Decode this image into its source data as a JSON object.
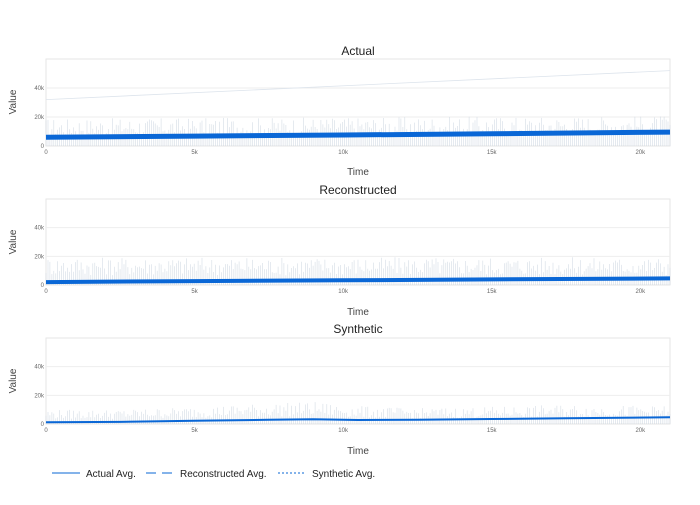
{
  "colors": {
    "avg_line": "#0a67d6",
    "band": "#c9d3de",
    "grid": "#eeeeee",
    "frame": "#e6e6e6"
  },
  "chart_data": [
    {
      "type": "line",
      "title": "Actual",
      "xlabel": "Time",
      "ylabel": "Value",
      "xlim": [
        0,
        21000
      ],
      "ylim": [
        0,
        60000
      ],
      "x_ticks": [
        0,
        5000,
        10000,
        15000,
        20000
      ],
      "x_tick_labels": [
        "0",
        "5k",
        "10k",
        "15k",
        "20k"
      ],
      "y_ticks": [
        0,
        20000,
        40000
      ],
      "y_tick_labels": [
        "0",
        "20k",
        "40k"
      ],
      "grid": true,
      "series": [
        {
          "style": "solid",
          "role": "average",
          "x": [
            0,
            5000,
            10000,
            15000,
            21000
          ],
          "y": [
            6000,
            6800,
            7600,
            8400,
            9600
          ]
        },
        {
          "style": "band",
          "role": "range",
          "x": [
            0,
            21000
          ],
          "low": [
            0,
            0
          ],
          "high": [
            19000,
            21000
          ]
        },
        {
          "style": "faint",
          "role": "upper",
          "x": [
            0,
            21000
          ],
          "y": [
            32000,
            52000
          ]
        }
      ]
    },
    {
      "type": "line",
      "title": "Reconstructed",
      "xlabel": "Time",
      "ylabel": "Value",
      "xlim": [
        0,
        21000
      ],
      "ylim": [
        0,
        60000
      ],
      "x_ticks": [
        0,
        5000,
        10000,
        15000,
        20000
      ],
      "x_tick_labels": [
        "0",
        "5k",
        "10k",
        "15k",
        "20k"
      ],
      "y_ticks": [
        0,
        20000,
        40000
      ],
      "y_tick_labels": [
        "0",
        "20k",
        "40k"
      ],
      "grid": true,
      "series": [
        {
          "style": "dashed",
          "role": "average",
          "x": [
            0,
            5000,
            10000,
            15000,
            21000
          ],
          "y": [
            2000,
            2700,
            3300,
            3900,
            4600
          ]
        },
        {
          "style": "band",
          "role": "range",
          "x": [
            0,
            21000
          ],
          "low": [
            0,
            0
          ],
          "high": [
            19500,
            19500
          ]
        }
      ]
    },
    {
      "type": "line",
      "title": "Synthetic",
      "xlabel": "Time",
      "ylabel": "Value",
      "xlim": [
        0,
        21000
      ],
      "ylim": [
        0,
        60000
      ],
      "x_ticks": [
        0,
        5000,
        10000,
        15000,
        20000
      ],
      "x_tick_labels": [
        "0",
        "5k",
        "10k",
        "15k",
        "20k"
      ],
      "y_ticks": [
        0,
        20000,
        40000
      ],
      "y_tick_labels": [
        "0",
        "20k",
        "40k"
      ],
      "grid": true,
      "series": [
        {
          "style": "dotted",
          "role": "average",
          "x": [
            0,
            2500,
            5000,
            7500,
            9000,
            10500,
            12500,
            15000,
            17500,
            21000
          ],
          "y": [
            1200,
            1500,
            2200,
            2900,
            3300,
            2800,
            3000,
            3500,
            4000,
            4700
          ]
        },
        {
          "style": "band",
          "role": "range",
          "x": [
            0,
            2500,
            5000,
            7500,
            9000,
            10500,
            12500,
            15000,
            17500,
            21000
          ],
          "low": [
            0,
            0,
            0,
            0,
            0,
            0,
            0,
            0,
            0,
            0
          ],
          "high": [
            10000,
            10000,
            12000,
            14500,
            15500,
            12500,
            11000,
            12000,
            13500,
            12500
          ]
        }
      ]
    }
  ],
  "legend": {
    "placement": "bottom-left",
    "items": [
      {
        "label": "Actual Avg.",
        "style": "solid"
      },
      {
        "label": "Reconstructed Avg.",
        "style": "dashed"
      },
      {
        "label": "Synthetic Avg.",
        "style": "dotted"
      }
    ]
  }
}
